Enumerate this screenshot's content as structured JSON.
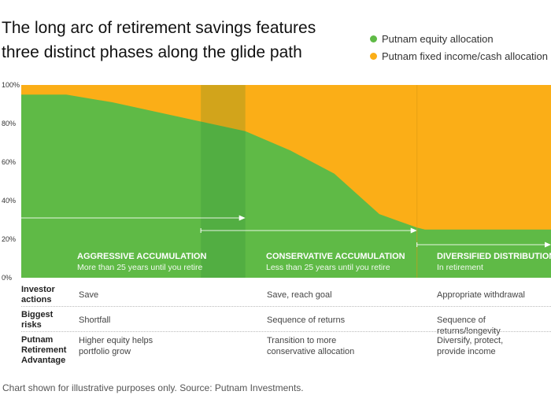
{
  "title": [
    "The long arc of retirement savings features",
    "three distinct phases along the glide path"
  ],
  "legend": [
    {
      "label": "Putnam equity allocation",
      "color": "#5fba46"
    },
    {
      "label": "Putnam fixed income/cash allocation",
      "color": "#fbae17"
    }
  ],
  "chart_data": {
    "type": "area",
    "title": "The long arc of retirement savings features three distinct phases along the glide path",
    "xlabel": "",
    "ylabel": "",
    "ylim": [
      0,
      100
    ],
    "yticks": [
      "0%",
      "20%",
      "40%",
      "60%",
      "80%",
      "100%"
    ],
    "x": [
      0,
      8.5,
      17.2,
      33.9,
      42.3,
      50.8,
      59.1,
      67.6,
      74.7,
      76.2,
      100
    ],
    "series": [
      {
        "name": "Putnam equity allocation",
        "values": [
          95,
          95,
          91,
          81,
          76,
          66,
          54,
          33,
          26,
          25,
          25
        ],
        "color": "#5fba46"
      },
      {
        "name": "Putnam fixed income/cash allocation",
        "values": [
          5,
          5,
          9,
          19,
          24,
          34,
          46,
          67,
          74,
          75,
          75
        ],
        "color": "#fbae17"
      }
    ],
    "overlap_band": [
      33.9,
      42.3
    ],
    "retirement_divider": 74.7,
    "phases": [
      {
        "name": "AGGRESSIVE ACCUMULATION",
        "sub": "More than 25 years until you retire",
        "range": [
          0,
          42.3
        ]
      },
      {
        "name": "CONSERVATIVE ACCUMULATION",
        "sub": "Less than 25 years until you retire",
        "range": [
          33.9,
          74.7
        ]
      },
      {
        "name": "DIVERSIFIED DISTRIBUTION",
        "sub": "In retirement",
        "range": [
          74.7,
          100
        ]
      }
    ]
  },
  "table": {
    "rows": [
      {
        "header": "Investor actions",
        "cells": [
          "Save",
          "Save, reach goal",
          "Appropriate withdrawal"
        ]
      },
      {
        "header": "Biggest risks",
        "cells": [
          "Shortfall",
          "Sequence of returns",
          "Sequence of returns/longevity"
        ]
      },
      {
        "header": "Putnam Retirement Advantage",
        "cells": [
          "Higher equity helps portfolio grow",
          "Transition to more conservative allocation",
          "Diversify, protect, provide income"
        ]
      }
    ]
  },
  "footnote": "Chart shown for illustrative purposes only. Source: Putnam Investments."
}
